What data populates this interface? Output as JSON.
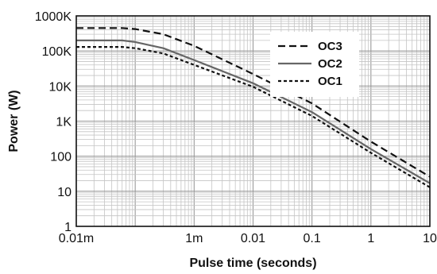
{
  "chart_data": {
    "type": "line",
    "title": "",
    "xlabel": "Pulse time (seconds)",
    "ylabel": "Power (W)",
    "xscale": "log",
    "yscale": "log",
    "xlim": [
      1e-05,
      10
    ],
    "ylim": [
      1,
      1000000
    ],
    "grid": true,
    "legend_position": "top-right",
    "x_ticks": [
      {
        "value": 1e-05,
        "label": "0.01m"
      },
      {
        "value": 0.001,
        "label": "1m"
      },
      {
        "value": 0.01,
        "label": "0.01"
      },
      {
        "value": 0.1,
        "label": "0.1"
      },
      {
        "value": 1,
        "label": "1"
      },
      {
        "value": 10,
        "label": "10"
      }
    ],
    "y_ticks": [
      {
        "value": 1,
        "label": "1"
      },
      {
        "value": 10,
        "label": "10"
      },
      {
        "value": 100,
        "label": "100"
      },
      {
        "value": 1000,
        "label": "1K"
      },
      {
        "value": 10000,
        "label": "10K"
      },
      {
        "value": 100000,
        "label": "100K"
      },
      {
        "value": 1000000,
        "label": "1000K"
      }
    ],
    "series": [
      {
        "name": "OC3",
        "style": "dashed",
        "color": "#111111",
        "x": [
          1e-05,
          6e-05,
          0.0001,
          0.0003,
          0.001,
          0.01,
          0.1,
          1,
          10
        ],
        "y": [
          450000,
          450000,
          420000,
          300000,
          140000,
          22000,
          3200,
          260,
          26
        ]
      },
      {
        "name": "OC2",
        "style": "solid",
        "color": "#666666",
        "x": [
          1e-05,
          6e-05,
          0.0001,
          0.0003,
          0.001,
          0.01,
          0.1,
          1,
          10
        ],
        "y": [
          200000,
          200000,
          180000,
          120000,
          55000,
          12000,
          1800,
          160,
          17
        ]
      },
      {
        "name": "OC1",
        "style": "dotted",
        "color": "#111111",
        "x": [
          1e-05,
          6e-05,
          0.0001,
          0.0003,
          0.001,
          0.01,
          0.1,
          1,
          10
        ],
        "y": [
          130000,
          130000,
          120000,
          85000,
          40000,
          9500,
          1400,
          125,
          13
        ]
      }
    ]
  }
}
